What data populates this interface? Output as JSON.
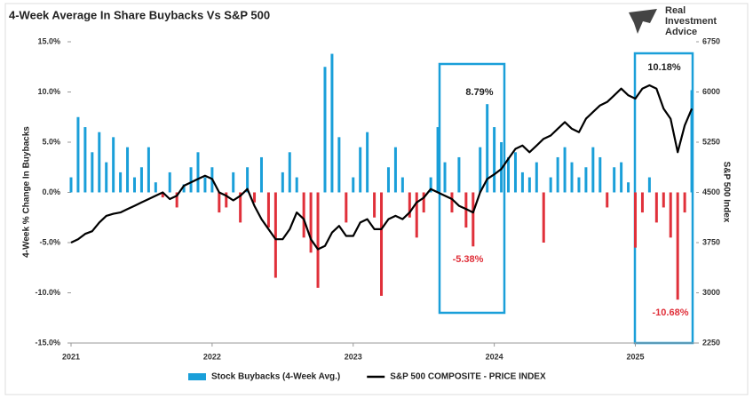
{
  "logo": [
    "Real",
    "Investment",
    "Advice"
  ],
  "chart_data": {
    "type": "bar-line",
    "title": "4-Week Average In Share Buybacks Vs S&P 500",
    "y_label": "4-Week % Change In Buybacks",
    "y2_label": "S&P 500 Index",
    "x": [
      2021.0,
      2021.05,
      2021.1,
      2021.15,
      2021.2,
      2021.25,
      2021.3,
      2021.35,
      2021.4,
      2021.45,
      2021.5,
      2021.55,
      2021.6,
      2021.65,
      2021.7,
      2021.75,
      2021.8,
      2021.85,
      2021.9,
      2021.95,
      2022.0,
      2022.05,
      2022.1,
      2022.15,
      2022.2,
      2022.25,
      2022.3,
      2022.35,
      2022.4,
      2022.45,
      2022.5,
      2022.55,
      2022.6,
      2022.65,
      2022.7,
      2022.75,
      2022.8,
      2022.85,
      2022.9,
      2022.95,
      2023.0,
      2023.05,
      2023.1,
      2023.15,
      2023.2,
      2023.25,
      2023.3,
      2023.35,
      2023.4,
      2023.45,
      2023.5,
      2023.55,
      2023.6,
      2023.65,
      2023.7,
      2023.75,
      2023.8,
      2023.85,
      2023.9,
      2023.95,
      2024.0,
      2024.05,
      2024.1,
      2024.15,
      2024.2,
      2024.25,
      2024.3,
      2024.35,
      2024.4,
      2024.45,
      2024.5,
      2024.55,
      2024.6,
      2024.65,
      2024.7,
      2024.75,
      2024.8,
      2024.85,
      2024.9,
      2024.95,
      2025.0,
      2025.05,
      2025.1,
      2025.15,
      2025.2,
      2025.25,
      2025.3,
      2025.35,
      2025.4
    ],
    "series": [
      {
        "name": "Stock Buybacks (4-Week Avg.)",
        "type": "bar",
        "color": "#1a9fd9",
        "negative_color": "#e0303a",
        "values": [
          1.5,
          7.5,
          6.5,
          4.0,
          6.0,
          3.0,
          5.5,
          2.0,
          4.5,
          1.5,
          2.5,
          4.5,
          1.0,
          -0.5,
          2.0,
          -1.5,
          0.8,
          2.5,
          4.0,
          1.5,
          2.5,
          -2.0,
          -1.5,
          2.0,
          -3.0,
          2.5,
          -1.0,
          3.5,
          -3.5,
          -8.5,
          2.0,
          4.0,
          1.5,
          -4.5,
          -6.0,
          -9.5,
          12.5,
          13.8,
          5.5,
          -3.0,
          1.5,
          4.5,
          6.0,
          -2.5,
          -10.3,
          2.5,
          4.5,
          1.5,
          -2.5,
          -4.5,
          -2.0,
          1.5,
          6.5,
          3.0,
          -2.0,
          3.5,
          -3.5,
          -5.38,
          4.5,
          8.79,
          6.5,
          5.0,
          3.5,
          4.0,
          2.0,
          1.5,
          3.0,
          -5.0,
          1.5,
          3.5,
          4.5,
          3.0,
          1.5,
          2.5,
          4.5,
          3.5,
          -1.5,
          2.5,
          3.0,
          1.0,
          -5.5,
          -2.0,
          1.5,
          -3.0,
          -1.5,
          -4.5,
          -10.68,
          -2.0,
          10.18
        ]
      },
      {
        "name": "S&P 500 COMPOSITE - PRICE INDEX",
        "type": "line",
        "axis": "y2",
        "color": "#000000",
        "values": [
          3750,
          3800,
          3880,
          3920,
          4050,
          4150,
          4180,
          4200,
          4250,
          4300,
          4350,
          4400,
          4450,
          4500,
          4400,
          4450,
          4600,
          4650,
          4700,
          4750,
          4700,
          4500,
          4450,
          4380,
          4450,
          4550,
          4300,
          4100,
          3950,
          3800,
          3800,
          3950,
          4200,
          4100,
          3800,
          3650,
          3700,
          3900,
          4000,
          3850,
          3850,
          4050,
          4100,
          3950,
          3950,
          4100,
          4150,
          4100,
          4200,
          4350,
          4420,
          4550,
          4500,
          4450,
          4400,
          4300,
          4250,
          4200,
          4500,
          4700,
          4770,
          4850,
          5000,
          5150,
          5200,
          5100,
          5200,
          5300,
          5350,
          5450,
          5550,
          5450,
          5400,
          5600,
          5700,
          5800,
          5850,
          5950,
          6050,
          5950,
          5900,
          6050,
          6100,
          6050,
          5750,
          5600,
          5100,
          5500,
          5750
        ]
      }
    ],
    "xlim": [
      2021,
      2025.45
    ],
    "xticks": [
      2021,
      2022,
      2023,
      2024,
      2025
    ],
    "ylim": [
      -15,
      15
    ],
    "yticks": [
      {
        "value": -15,
        "label": "-15.0%"
      },
      {
        "value": -10,
        "label": "-10.0%"
      },
      {
        "value": -5,
        "label": "-5.0%"
      },
      {
        "value": 0,
        "label": "0.0%"
      },
      {
        "value": 5,
        "label": "5.0%"
      },
      {
        "value": 10,
        "label": "10.0%"
      },
      {
        "value": 15,
        "label": "15.0%"
      }
    ],
    "y2lim": [
      2250,
      6750
    ],
    "y2ticks": [
      2250,
      3000,
      3750,
      4500,
      5250,
      6000,
      6750
    ],
    "annotations": [
      "8.79%",
      "-5.38%",
      "10.18%",
      "-10.68%"
    ],
    "legend": "bottom"
  }
}
